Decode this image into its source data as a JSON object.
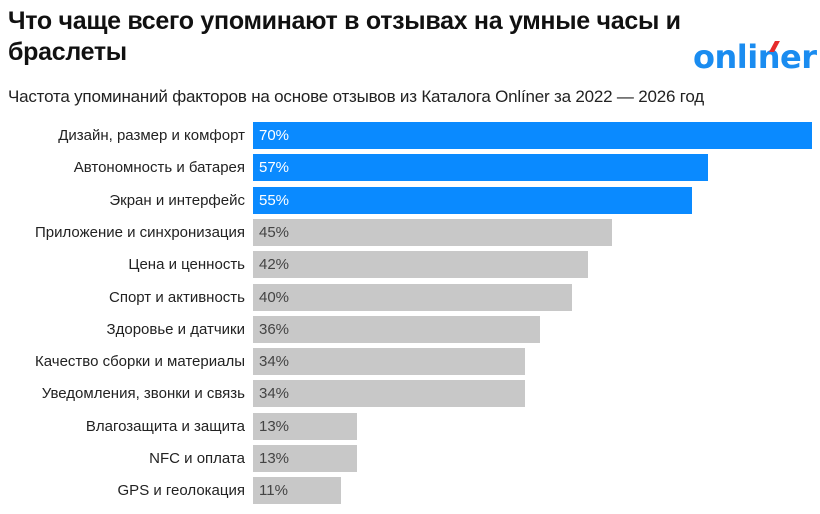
{
  "header": {
    "title": "Что чаще всего упоминают в отзывах на умные часы и браслеты",
    "subtitle": "Частота упоминаний факторов на основе отзывов из Каталога Onlíner за 2022 — 2026 год",
    "logo_text": "onliner"
  },
  "colors": {
    "highlight": "#0a8aff",
    "default": "#c8c8c8",
    "logo": "#1a8cf0",
    "logo_accent": "#e62b2b"
  },
  "chart_data": {
    "type": "bar",
    "orientation": "horizontal",
    "title": "Что чаще всего упоминают в отзывах на умные часы и браслеты",
    "subtitle": "Частота упоминаний факторов на основе отзывов из Каталога Onlíner за 2022 — 2026 год",
    "xlabel": "",
    "ylabel": "",
    "unit": "%",
    "xlim": [
      0,
      70
    ],
    "grid": false,
    "legend": null,
    "categories": [
      "Дизайн, размер и комфорт",
      "Автономность и батарея",
      "Экран и интерфейс",
      "Приложение и синхронизация",
      "Цена и ценность",
      "Спорт и активность",
      "Здоровье и датчики",
      "Качество сборки и материалы",
      "Уведомления, звонки и связь",
      "Влагозащита и защита",
      "NFC и оплата",
      "GPS и геолокация"
    ],
    "values": [
      70,
      57,
      55,
      45,
      42,
      40,
      36,
      34,
      34,
      13,
      13,
      11
    ],
    "value_labels": [
      "70%",
      "57%",
      "55%",
      "45%",
      "42%",
      "40%",
      "36%",
      "34%",
      "34%",
      "13%",
      "13%",
      "11%"
    ],
    "highlighted": [
      true,
      true,
      true,
      false,
      false,
      false,
      false,
      false,
      false,
      false,
      false,
      false
    ]
  }
}
